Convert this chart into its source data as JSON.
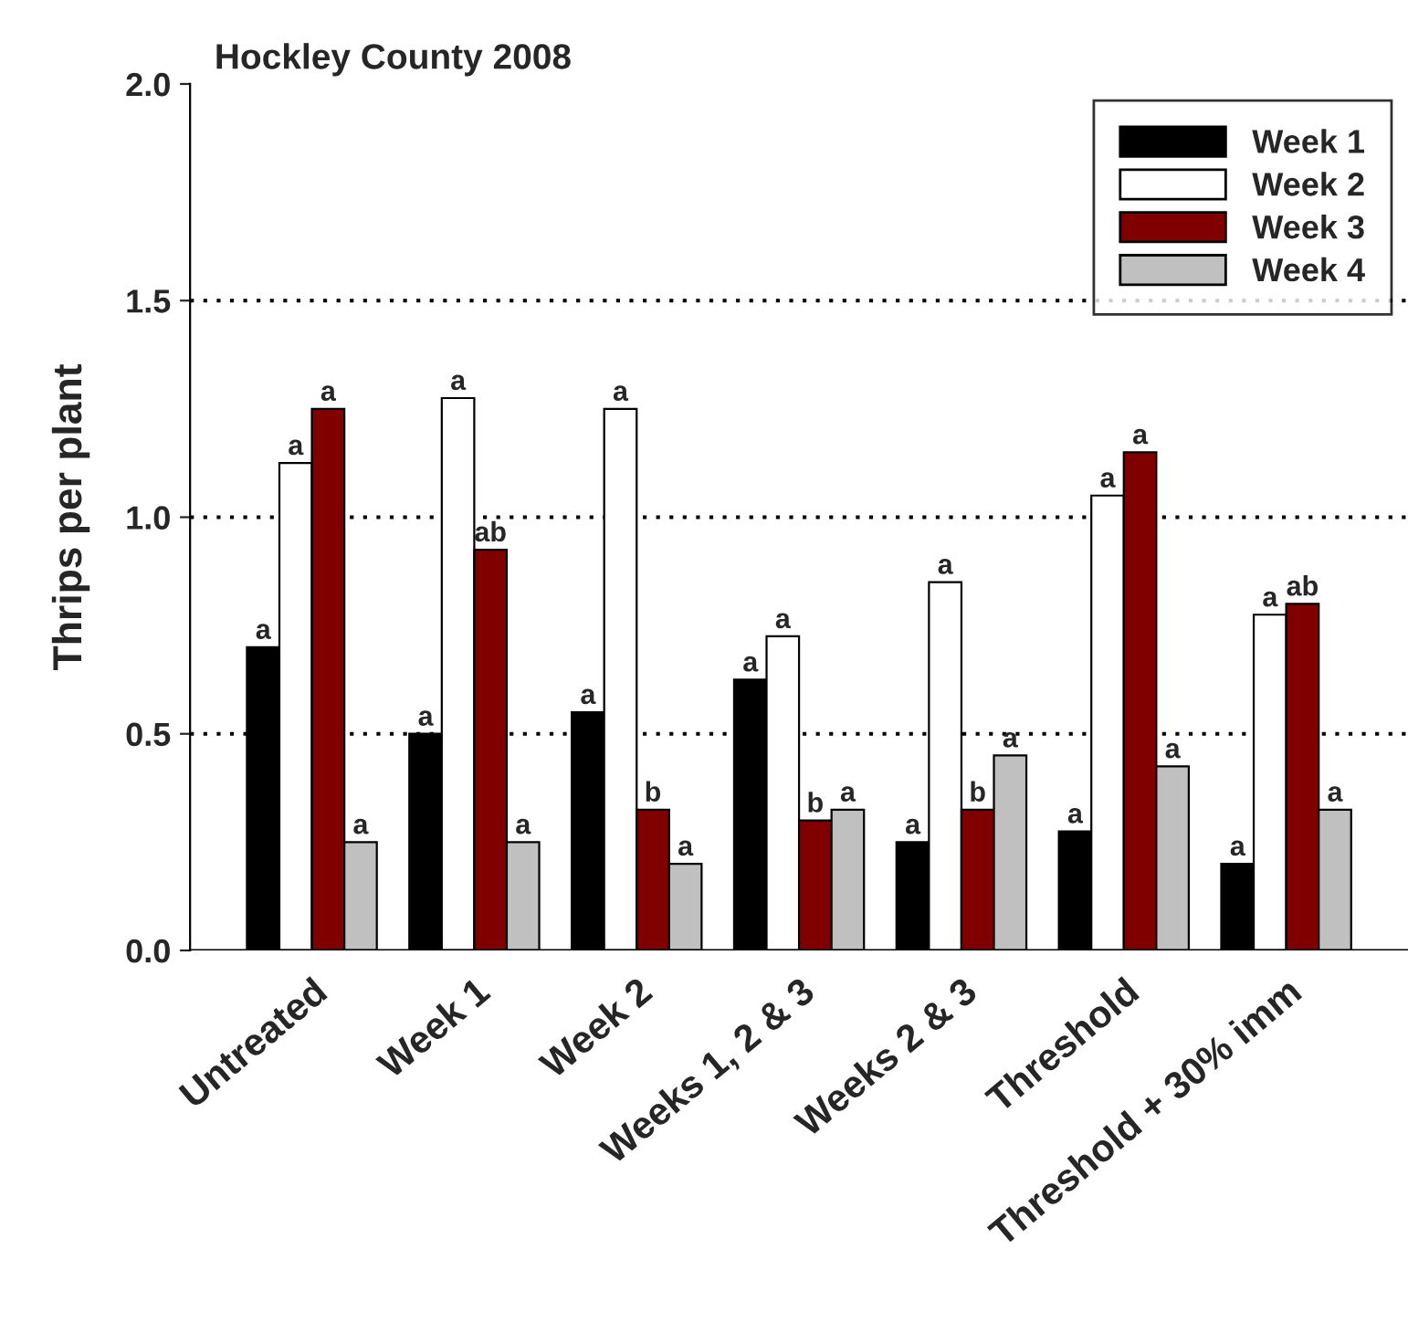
{
  "chart_data": {
    "type": "bar",
    "title": "Hockley County 2008",
    "ylabel": "Thrips per plant",
    "categories": [
      "Untreated",
      "Week 1",
      "Week 2",
      "Weeks 1, 2 & 3",
      "Weeks 2 & 3",
      "Threshold",
      "Threshold + 30% imm"
    ],
    "series": [
      {
        "name": "Week 1",
        "color": "#000000",
        "values": [
          0.7,
          0.5,
          0.55,
          0.625,
          0.25,
          0.275,
          0.2
        ],
        "value_labels": [
          "a",
          "a",
          "a",
          "a",
          "a",
          "a",
          "a"
        ]
      },
      {
        "name": "Week 2",
        "color": "#ffffff",
        "values": [
          1.125,
          1.275,
          1.25,
          0.725,
          0.85,
          1.05,
          0.775
        ],
        "value_labels": [
          "a",
          "a",
          "a",
          "a",
          "a",
          "a",
          "a"
        ]
      },
      {
        "name": "Week 3",
        "color": "#800000",
        "values": [
          1.25,
          0.925,
          0.325,
          0.3,
          0.325,
          1.15,
          0.8
        ],
        "value_labels": [
          "a",
          "ab",
          "b",
          "b",
          "b",
          "a",
          "ab"
        ]
      },
      {
        "name": "Week 4",
        "color": "#c0c0c0",
        "values": [
          0.25,
          0.25,
          0.2,
          0.325,
          0.45,
          0.425,
          0.325
        ],
        "value_labels": [
          "a",
          "a",
          "a",
          "a",
          "a",
          "a",
          "a"
        ]
      }
    ],
    "ylim": [
      0,
      2
    ],
    "yticks": [
      {
        "value": 0,
        "label": "0.0"
      },
      {
        "value": 0.5,
        "label": "0.5"
      },
      {
        "value": 1,
        "label": "1.0"
      },
      {
        "value": 1.5,
        "label": "1.5"
      },
      {
        "value": 2,
        "label": "2.0"
      }
    ],
    "grid": "y",
    "legend": "top right"
  }
}
